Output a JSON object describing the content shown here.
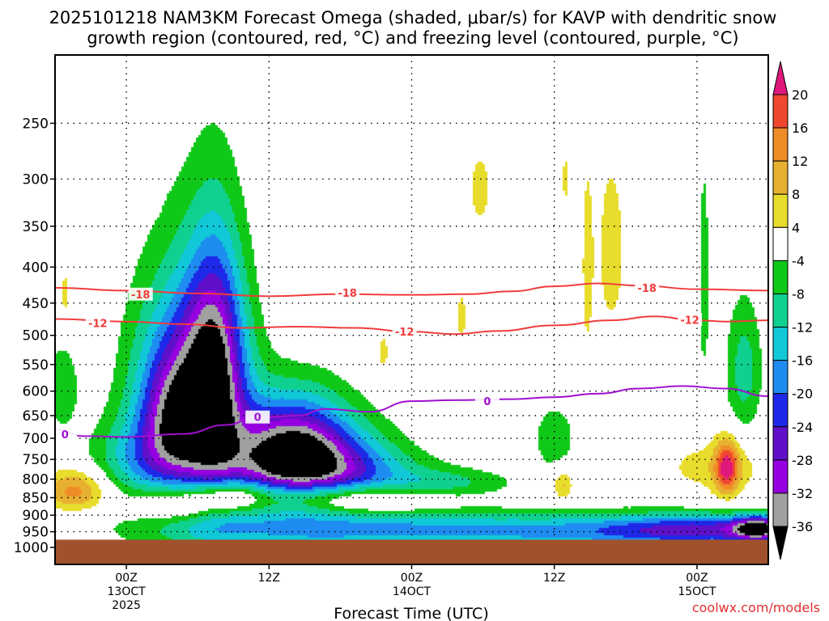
{
  "chart_data": {
    "type": "heatmap",
    "title_line1": "2025101218 NAM3KM Forecast Omega (shaded, μbar/s) for KAVP with dendritic snow",
    "title_line2": "growth region (contoured, red, °C) and freezing level (contoured, purple, °C)",
    "xlabel": "Forecast Time (UTC)",
    "ylabel": "",
    "credit": "coolwx.com/models",
    "x_range_hours": [
      -5,
      45
    ],
    "y_range_hpa": [
      1000,
      200
    ],
    "y_ticks": [
      250,
      300,
      350,
      400,
      450,
      500,
      550,
      600,
      650,
      700,
      750,
      800,
      850,
      900,
      950,
      1000
    ],
    "x_ticks": [
      {
        "hour": 0,
        "lines": [
          "00Z",
          "13OCT",
          "2025"
        ]
      },
      {
        "hour": 10,
        "lines": [
          "12Z"
        ]
      },
      {
        "hour": 20,
        "lines": [
          "00Z",
          "14OCT"
        ]
      },
      {
        "hour": 30,
        "lines": [
          "12Z"
        ]
      },
      {
        "hour": 40,
        "lines": [
          "00Z",
          "15OCT"
        ]
      }
    ],
    "grid": true,
    "colorbar": {
      "labels": [
        20,
        16,
        12,
        8,
        4,
        -4,
        -8,
        -12,
        -16,
        -20,
        -24,
        -28,
        -32,
        -36
      ],
      "bins": [
        {
          "from": -36,
          "to": -32,
          "color": "#a0a0a0"
        },
        {
          "from": -32,
          "to": -28,
          "color": "#9600e0"
        },
        {
          "from": -28,
          "to": -24,
          "color": "#6010c8"
        },
        {
          "from": -24,
          "to": -20,
          "color": "#1e28e8"
        },
        {
          "from": -20,
          "to": -16,
          "color": "#1e8cf0"
        },
        {
          "from": -16,
          "to": -12,
          "color": "#10c8d8"
        },
        {
          "from": -12,
          "to": -8,
          "color": "#10d090"
        },
        {
          "from": -8,
          "to": -4,
          "color": "#10c818"
        },
        {
          "from": -4,
          "to": 4,
          "color": "#ffffff"
        },
        {
          "from": 4,
          "to": 8,
          "color": "#e8dc2c"
        },
        {
          "from": 8,
          "to": 12,
          "color": "#e8b030"
        },
        {
          "from": 12,
          "to": 16,
          "color": "#f08c28"
        },
        {
          "from": 16,
          "to": 20,
          "color": "#f04830"
        }
      ],
      "overflow_high_color": "#e0187c",
      "overflow_low_color": "#000000"
    },
    "ground_color": "#a0522d",
    "ground_top_hpa": 975,
    "contours": [
      {
        "name": "-18",
        "color": "#f03c3c",
        "label": "-18",
        "label_points": [
          {
            "x": 1.0,
            "y": 437
          },
          {
            "x": 15.5,
            "y": 435
          },
          {
            "x": 36.5,
            "y": 428
          }
        ],
        "points": [
          [
            -5,
            428
          ],
          [
            0,
            432
          ],
          [
            5,
            436
          ],
          [
            10,
            440
          ],
          [
            15,
            437
          ],
          [
            20,
            438
          ],
          [
            24,
            437
          ],
          [
            27,
            433
          ],
          [
            30,
            426
          ],
          [
            33,
            422
          ],
          [
            36,
            425
          ],
          [
            40,
            430
          ],
          [
            45,
            432
          ]
        ]
      },
      {
        "name": "-12",
        "color": "#f03c3c",
        "label": "-12",
        "label_points": [
          {
            "x": -2.0,
            "y": 480
          },
          {
            "x": 19.5,
            "y": 494
          },
          {
            "x": 39.5,
            "y": 475
          }
        ],
        "points": [
          [
            -5,
            474
          ],
          [
            0,
            478
          ],
          [
            4,
            482
          ],
          [
            8,
            488
          ],
          [
            12,
            486
          ],
          [
            16,
            488
          ],
          [
            20,
            494
          ],
          [
            23,
            498
          ],
          [
            26,
            493
          ],
          [
            30,
            484
          ],
          [
            34,
            476
          ],
          [
            37,
            470
          ],
          [
            40,
            476
          ],
          [
            42,
            478
          ],
          [
            45,
            476
          ]
        ]
      },
      {
        "name": "0",
        "color": "#a010d0",
        "label": "0",
        "label_points": [
          {
            "x": -4.3,
            "y": 691
          },
          {
            "x": 9.2,
            "y": 653
          },
          {
            "x": 25.3,
            "y": 620
          }
        ],
        "points": [
          [
            -5,
            680
          ],
          [
            -3,
            695
          ],
          [
            0,
            697
          ],
          [
            4,
            690
          ],
          [
            7,
            670
          ],
          [
            9,
            655
          ],
          [
            12,
            650
          ],
          [
            14,
            636
          ],
          [
            17,
            642
          ],
          [
            20,
            620
          ],
          [
            23,
            618
          ],
          [
            27,
            616
          ],
          [
            30,
            612
          ],
          [
            33,
            605
          ],
          [
            36,
            595
          ],
          [
            39,
            590
          ],
          [
            42,
            595
          ],
          [
            45,
            610
          ]
        ]
      }
    ],
    "omega_cells": [
      {
        "x": 4.2,
        "p": 600,
        "sx": 2.6,
        "sy": 150,
        "v": -24
      },
      {
        "x": 3.2,
        "p": 660,
        "sx": 1.6,
        "sy": 90,
        "v": -14
      },
      {
        "x": 6.2,
        "p": 630,
        "sx": 1.6,
        "sy": 160,
        "v": -20
      },
      {
        "x": 6.3,
        "p": 480,
        "sx": 1.3,
        "sy": 120,
        "v": -10
      },
      {
        "x": 1.2,
        "p": 750,
        "sx": 2.6,
        "sy": 70,
        "v": -12
      },
      {
        "x": 11.8,
        "p": 720,
        "sx": 2.8,
        "sy": 90,
        "v": -26
      },
      {
        "x": 10.2,
        "p": 750,
        "sx": 2.6,
        "sy": 70,
        "v": -12
      },
      {
        "x": 14.8,
        "p": 760,
        "sx": 3.2,
        "sy": 70,
        "v": -14
      },
      {
        "x": 15.8,
        "p": 790,
        "sx": 5.0,
        "sy": 45,
        "v": -8
      },
      {
        "x": -4.5,
        "p": 590,
        "sx": 0.8,
        "sy": 60,
        "v": -8
      },
      {
        "x": 22.5,
        "p": 810,
        "sx": 3.5,
        "sy": 25,
        "v": -7
      },
      {
        "x": 9.5,
        "p": 945,
        "sx": 6.5,
        "sy": 45,
        "v": -13
      },
      {
        "x": 21.0,
        "p": 945,
        "sx": 6.5,
        "sy": 40,
        "v": -12
      },
      {
        "x": 32.0,
        "p": 950,
        "sx": 6.5,
        "sy": 40,
        "v": -12
      },
      {
        "x": 41.0,
        "p": 945,
        "sx": 5.0,
        "sy": 35,
        "v": -22
      },
      {
        "x": 44.3,
        "p": 940,
        "sx": 1.2,
        "sy": 25,
        "v": -26
      },
      {
        "x": 40.5,
        "p": 420,
        "sx": 0.25,
        "sy": 100,
        "v": -8
      },
      {
        "x": 43.3,
        "p": 560,
        "sx": 0.9,
        "sy": 90,
        "v": -10
      },
      {
        "x": 30.0,
        "p": 700,
        "sx": 1.0,
        "sy": 50,
        "v": -8
      },
      {
        "x": -3.6,
        "p": 830,
        "sx": 1.6,
        "sy": 40,
        "v": 14
      },
      {
        "x": 3.8,
        "p": 870,
        "sx": 2.2,
        "sy": 35,
        "v": 11
      },
      {
        "x": 7.0,
        "p": 845,
        "sx": 1.6,
        "sy": 30,
        "v": 11
      },
      {
        "x": 12.5,
        "p": 840,
        "sx": 4.0,
        "sy": 30,
        "v": 10
      },
      {
        "x": 17.0,
        "p": 860,
        "sx": 3.0,
        "sy": 25,
        "v": 7
      },
      {
        "x": 41.5,
        "p": 770,
        "sx": 3.0,
        "sy": 50,
        "v": 6
      },
      {
        "x": 42.1,
        "p": 770,
        "sx": 0.6,
        "sy": 50,
        "v": 18
      },
      {
        "x": 34.0,
        "p": 380,
        "sx": 0.8,
        "sy": 90,
        "v": 6
      },
      {
        "x": 32.3,
        "p": 400,
        "sx": 0.35,
        "sy": 120,
        "v": 5
      },
      {
        "x": 24.8,
        "p": 310,
        "sx": 0.6,
        "sy": 30,
        "v": 6
      },
      {
        "x": 30.8,
        "p": 300,
        "sx": 0.3,
        "sy": 25,
        "v": 5
      },
      {
        "x": 30.6,
        "p": 815,
        "sx": 0.5,
        "sy": 30,
        "v": 9
      },
      {
        "x": 23.5,
        "p": 470,
        "sx": 0.4,
        "sy": 40,
        "v": 5
      },
      {
        "x": 18.0,
        "p": 530,
        "sx": 0.4,
        "sy": 35,
        "v": 5
      },
      {
        "x": -4.3,
        "p": 440,
        "sx": 0.4,
        "sy": 40,
        "v": 5
      }
    ]
  }
}
